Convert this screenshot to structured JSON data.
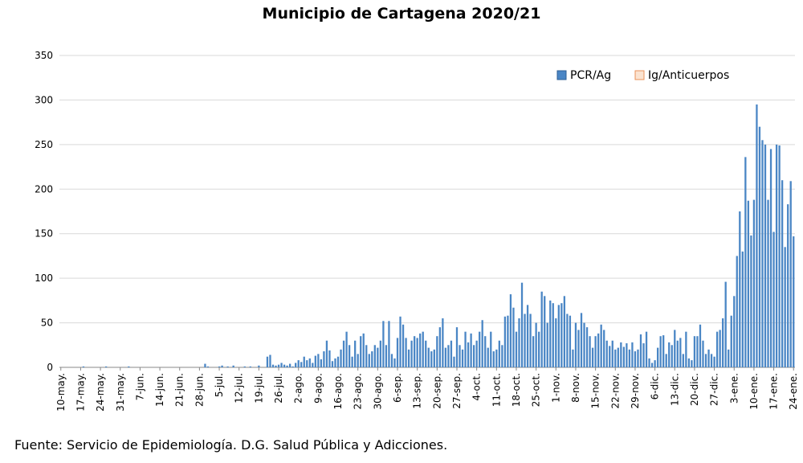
{
  "chart_data": {
    "type": "bar",
    "title": "Municipio de Cartagena 2020/21",
    "source": "Fuente: Servicio de Epidemiología. D.G. Salud Pública y Adicciones.",
    "ylim": [
      0,
      350
    ],
    "yticks": [
      0,
      50,
      100,
      150,
      200,
      250,
      300,
      350
    ],
    "grid": true,
    "legend_position": "top-right",
    "x_start": "10-may.",
    "x_tick_labels": [
      "10-may.",
      "17-may.",
      "24-may.",
      "31-may.",
      "7-jun.",
      "14-jun.",
      "21-jun.",
      "28-jun.",
      "5-jul.",
      "12-jul.",
      "19-jul.",
      "26-jul.",
      "2-ago.",
      "9-ago.",
      "16-ago.",
      "23-ago.",
      "30-ago.",
      "6-sep.",
      "13-sep.",
      "20-sep.",
      "27-sep.",
      "4-oct.",
      "11-oct.",
      "18-oct.",
      "25-oct.",
      "1-nov.",
      "8-nov.",
      "15-nov.",
      "22-nov.",
      "29-nov.",
      "6-dic.",
      "13-dic.",
      "20-dic.",
      "27-dic.",
      "3-ene.",
      "10-ene.",
      "17-ene.",
      "24-ene."
    ],
    "series": [
      {
        "name": "PCR/Ag",
        "color": "#4a86c5",
        "values": [
          0,
          0,
          0,
          0,
          0,
          0,
          0,
          0,
          1,
          0,
          0,
          0,
          0,
          0,
          0,
          0,
          1,
          0,
          0,
          0,
          0,
          0,
          0,
          0,
          1,
          0,
          0,
          0,
          0,
          0,
          0,
          0,
          0,
          0,
          0,
          0,
          0,
          0,
          0,
          0,
          0,
          0,
          0,
          0,
          0,
          0,
          0,
          0,
          0,
          0,
          0,
          4,
          1,
          0,
          0,
          0,
          1,
          2,
          0,
          1,
          0,
          2,
          0,
          0,
          0,
          1,
          0,
          1,
          0,
          0,
          2,
          0,
          0,
          12,
          14,
          3,
          2,
          3,
          5,
          3,
          2,
          4,
          1,
          5,
          8,
          6,
          12,
          8,
          10,
          5,
          13,
          15,
          9,
          18,
          30,
          19,
          7,
          10,
          12,
          20,
          30,
          40,
          25,
          12,
          30,
          15,
          35,
          38,
          25,
          15,
          18,
          25,
          22,
          30,
          52,
          25,
          52,
          15,
          10,
          33,
          57,
          48,
          33,
          20,
          30,
          35,
          33,
          38,
          40,
          30,
          22,
          18,
          20,
          35,
          45,
          55,
          22,
          25,
          30,
          12,
          45,
          25,
          20,
          40,
          28,
          38,
          25,
          30,
          40,
          53,
          35,
          22,
          40,
          18,
          20,
          30,
          25,
          57,
          58,
          82,
          67,
          40,
          55,
          95,
          60,
          70,
          60,
          35,
          50,
          40,
          85,
          80,
          50,
          75,
          72,
          55,
          70,
          72,
          80,
          60,
          58,
          20,
          50,
          42,
          61,
          50,
          45,
          35,
          22,
          35,
          38,
          48,
          42,
          30,
          24,
          30,
          20,
          22,
          28,
          23,
          27,
          20,
          28,
          18,
          20,
          37,
          27,
          40,
          10,
          5,
          8,
          22,
          35,
          36,
          15,
          28,
          25,
          42,
          30,
          33,
          15,
          40,
          10,
          8,
          35,
          35,
          48,
          30,
          15,
          20,
          15,
          12,
          40,
          42,
          55,
          96,
          20,
          58,
          80,
          125,
          175,
          130,
          236,
          187,
          148,
          188,
          295,
          270,
          255,
          250,
          188,
          245,
          152,
          250,
          249,
          210,
          135,
          183,
          209,
          147
        ]
      },
      {
        "name": "Ig/Anticuerpos",
        "color": "#e8925a",
        "values": []
      }
    ]
  }
}
